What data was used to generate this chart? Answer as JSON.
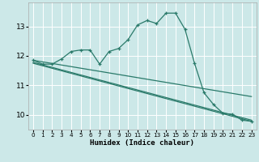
{
  "xlabel": "Humidex (Indice chaleur)",
  "bg_color": "#cce8e8",
  "grid_color": "#ffffff",
  "line_color": "#2a7a6a",
  "xlim": [
    -0.5,
    23.5
  ],
  "ylim": [
    9.5,
    13.8
  ],
  "yticks": [
    10,
    11,
    12,
    13
  ],
  "xticks": [
    0,
    1,
    2,
    3,
    4,
    5,
    6,
    7,
    8,
    9,
    10,
    11,
    12,
    13,
    14,
    15,
    16,
    17,
    18,
    19,
    20,
    21,
    22,
    23
  ],
  "jagged_x": [
    0,
    1,
    2,
    3,
    4,
    5,
    6,
    7,
    8,
    9,
    10,
    11,
    12,
    13,
    14,
    15,
    16,
    17,
    18,
    19,
    20,
    21,
    22,
    23
  ],
  "jagged_y": [
    11.85,
    11.72,
    11.72,
    11.9,
    12.15,
    12.2,
    12.2,
    11.72,
    12.15,
    12.25,
    12.55,
    13.05,
    13.2,
    13.1,
    13.45,
    13.45,
    12.9,
    11.75,
    10.75,
    10.35,
    10.05,
    10.02,
    9.82,
    9.78
  ],
  "trend1_x": [
    0,
    23
  ],
  "trend1_y": [
    11.85,
    10.62
  ],
  "trend2_x": [
    0,
    23
  ],
  "trend2_y": [
    11.78,
    9.82
  ],
  "trend3_x": [
    0,
    23
  ],
  "trend3_y": [
    11.75,
    9.78
  ]
}
